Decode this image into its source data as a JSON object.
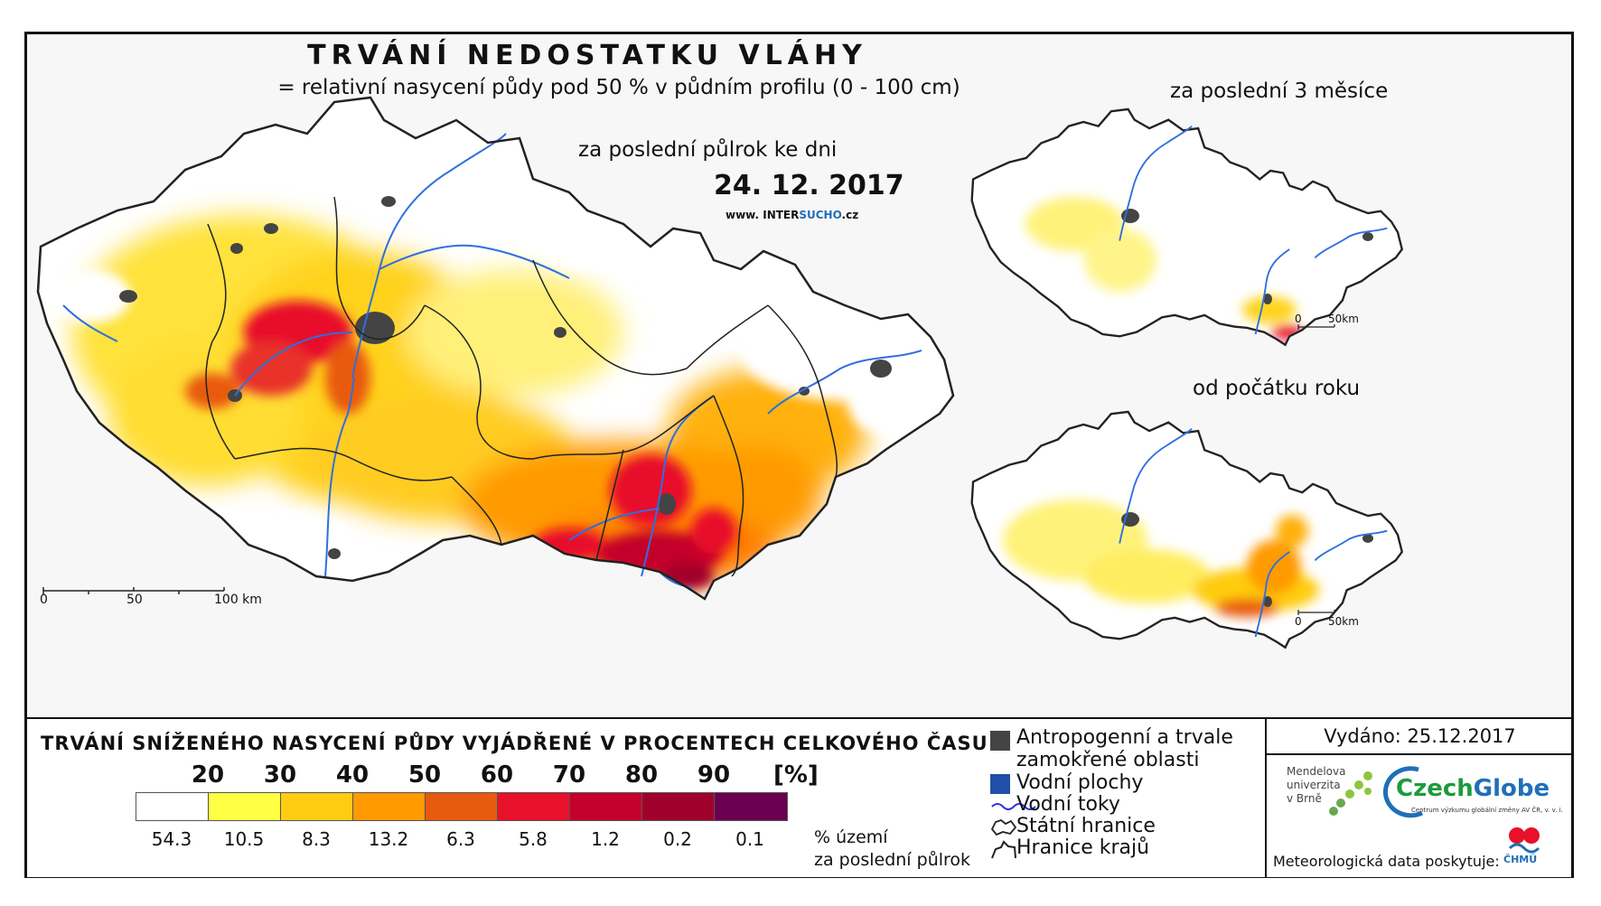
{
  "map": {
    "title": "TRVÁNÍ NEDOSTATKU VLÁHY",
    "subtitle": "= relativní nasycení půdy pod 50 % v půdním profilu (0 - 100 cm)",
    "period_label": "za poslední půlrok ke dni",
    "date": "24. 12. 2017",
    "website_prefix": "www. INTER",
    "website_highlight": "SUCHO",
    "website_suffix": ".cz",
    "main_scale": {
      "labels": [
        "0",
        "50",
        "100 km"
      ]
    },
    "inset_3months": {
      "title": "za poslední 3 měsíce",
      "scale": {
        "labels": [
          "0",
          "50km"
        ]
      }
    },
    "inset_year": {
      "title": "od počátku roku",
      "scale": {
        "labels": [
          "0",
          "50km"
        ]
      }
    },
    "colors": {
      "white": "#ffffff",
      "yellow": "#ffff44",
      "gold": "#ffcc11",
      "orange": "#ff9a00",
      "dark_orange": "#e85a10",
      "red": "#e8102a",
      "crimson": "#c4002a",
      "deep_red": "#a0002c",
      "purple": "#6b0050",
      "urban": "#444444",
      "water": "#1f5fbf",
      "river": "#2f6fe0"
    }
  },
  "legend": {
    "title": "TRVÁNÍ SNÍŽENÉHO NASYCENÍ PŮDY VYJÁDŘENÉ V PROCENTECH CELKOVÉHO ČASU",
    "ticks": [
      "20",
      "30",
      "40",
      "50",
      "60",
      "70",
      "80",
      "90"
    ],
    "unit": "[%]",
    "classes": [
      {
        "color": "#ffffff",
        "value": "54.3"
      },
      {
        "color": "#ffff44",
        "value": "10.5"
      },
      {
        "color": "#ffcc11",
        "value": "8.3"
      },
      {
        "color": "#ff9a00",
        "value": "13.2"
      },
      {
        "color": "#e85a10",
        "value": "6.3"
      },
      {
        "color": "#e8102a",
        "value": "5.8"
      },
      {
        "color": "#c4002a",
        "value": "1.2"
      },
      {
        "color": "#a0002c",
        "value": "0.2"
      },
      {
        "color": "#6b0050",
        "value": "0.1"
      }
    ],
    "caption_line1": "% území",
    "caption_line2": "za poslední půlrok"
  },
  "key": {
    "urban_line1": "Antropogenní a trvale",
    "urban_line2": "zamokřené oblasti",
    "water_bodies": "Vodní plochy",
    "rivers": "Vodní toky",
    "state_border": "Státní hranice",
    "region_border": "Hranice krajů"
  },
  "credits": {
    "issued": "Vydáno: 25.12.2017",
    "mendel_line1": "Mendelova",
    "mendel_line2": "univerzita",
    "mendel_line3": "v Brně",
    "czechglobe_a": "Czech",
    "czechglobe_b": "Globe",
    "czechglobe_sub": "Centrum výzkumu globální změny AV ČR, v. v. i.",
    "meteo": "Meteorologická data poskytuje:",
    "chmu": "ČHMÚ"
  }
}
